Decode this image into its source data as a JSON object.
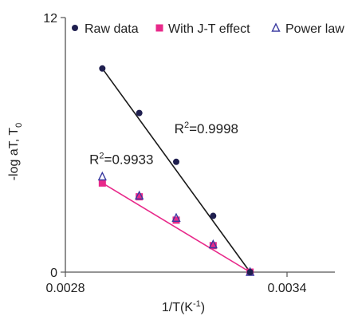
{
  "chart_data": {
    "type": "scatter",
    "title": "",
    "xlabel": "1/T(K",
    "xlabel_sup": "-1",
    "xlabel_end": ")",
    "ylabel": "-log aT, T",
    "ylabel_sub": "0",
    "xlim": [
      0.0028,
      0.0034
    ],
    "ylim": [
      0,
      12
    ],
    "x_ticks": [
      0.0028,
      0.0034
    ],
    "x_tick_labels": [
      "0.0028",
      "0.0034"
    ],
    "y_ticks": [
      0,
      12
    ],
    "y_tick_labels": [
      "0",
      "12"
    ],
    "grid": false,
    "legend_position": "top",
    "series": [
      {
        "name": "Raw data",
        "marker": "circle",
        "color": "#1f1f4f",
        "line_color": "#1a1a1a",
        "x": [
          0.0029,
          0.003,
          0.0031,
          0.0032,
          0.0033
        ],
        "y": [
          9.6,
          7.5,
          5.2,
          2.65,
          0.0
        ]
      },
      {
        "name": "With J-T effect",
        "marker": "square",
        "color": "#e8298a",
        "line_color": "#e8298a",
        "x": [
          0.0029,
          0.003,
          0.0031,
          0.0032,
          0.0033
        ],
        "y": [
          4.2,
          3.55,
          2.45,
          1.25,
          0.0
        ]
      },
      {
        "name": "Power law",
        "marker": "triangle",
        "color": "#3a3aa0",
        "line_color": "",
        "x": [
          0.0029,
          0.003,
          0.0031,
          0.0032,
          0.0033
        ],
        "y": [
          4.5,
          3.6,
          2.55,
          1.3,
          0.0
        ]
      }
    ],
    "fit_lines": [
      {
        "series": "Raw data",
        "x": [
          0.0029,
          0.0033
        ],
        "y": [
          9.6,
          0.0
        ]
      },
      {
        "series": "With J-T effect",
        "x": [
          0.0029,
          0.0033
        ],
        "y": [
          4.2,
          0.0
        ]
      }
    ],
    "annotations": [
      {
        "prefix": "R",
        "sup": "2",
        "suffix": "=0.9998",
        "x": 0.003095,
        "y": 6.55
      },
      {
        "prefix": "R",
        "sup": "2",
        "suffix": "=0.9933",
        "x": 0.002865,
        "y": 5.1
      }
    ]
  }
}
